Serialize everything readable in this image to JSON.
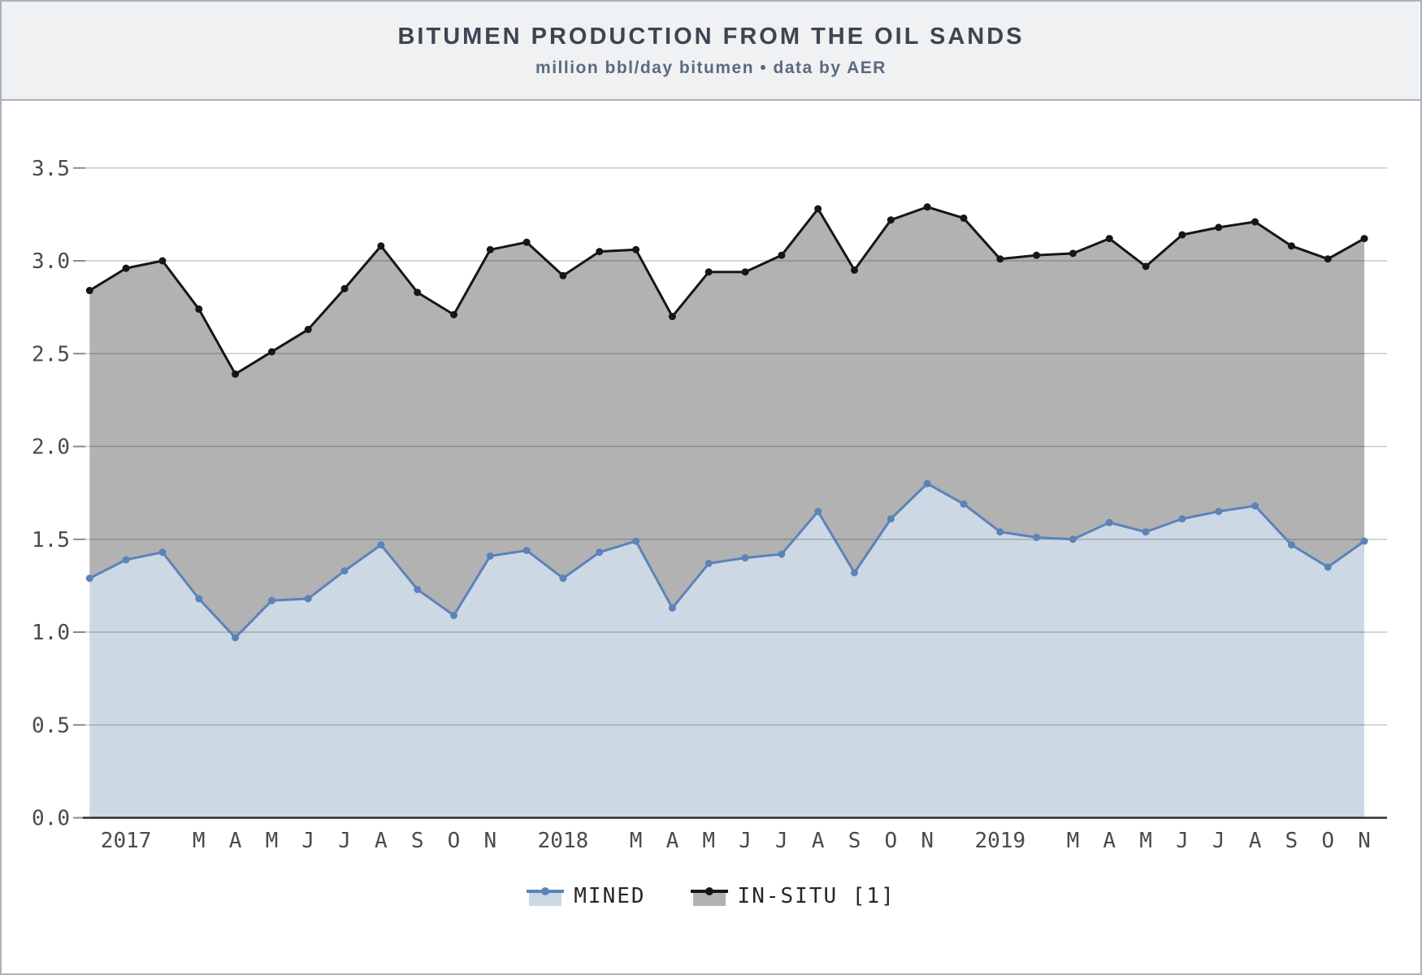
{
  "header": {
    "title": "BITUMEN PRODUCTION FROM THE OIL SANDS",
    "subtitle": "million bbl/day bitumen • data by AER"
  },
  "colors": {
    "background": "#ffffff",
    "header_bg": "#f0f1f2",
    "frame_border": "#a9b2bb",
    "grid": "rgba(0,0,0,0.21)",
    "axis_line": "#2e2e2e",
    "tick_mark": "#8a8a8a",
    "tick_text": "#4a4a4a",
    "title_text": "#3c4652",
    "subtitle_text": "#5a6a7e",
    "mined_line": "#5b83b8",
    "mined_fill": "#cdd8e5",
    "insitu_line": "#161616",
    "insitu_fill": "#b2b2b2"
  },
  "legend": {
    "items": [
      {
        "label": "MINED",
        "line": "#5b83b8",
        "fill": "#cdd8e5"
      },
      {
        "label": "IN-SITU [1]",
        "line": "#161616",
        "fill": "#b2b2b2"
      }
    ]
  },
  "chart_data": {
    "type": "area",
    "stacked": true,
    "title": "BITUMEN PRODUCTION FROM THE OIL SANDS",
    "subtitle": "million bbl/day bitumen • data by AER",
    "ylabel": "million bbl/day bitumen",
    "ylim": [
      0,
      3.5
    ],
    "y_tick_labels": [
      "0.0",
      "0.5",
      "1.0",
      "1.5",
      "2.0",
      "2.5",
      "3.0",
      "3.5"
    ],
    "grid": true,
    "legend_position": "bottom",
    "x_labels": [
      "",
      "2017",
      "",
      "M",
      "A",
      "M",
      "J",
      "J",
      "A",
      "S",
      "O",
      "N",
      "",
      "2018",
      "",
      "M",
      "A",
      "M",
      "J",
      "J",
      "A",
      "S",
      "O",
      "N",
      "",
      "2019",
      "",
      "M",
      "A",
      "M",
      "J",
      "J",
      "A",
      "S",
      "O",
      "N"
    ],
    "series": [
      {
        "name": "MINED",
        "values": [
          1.29,
          1.39,
          1.43,
          1.18,
          0.97,
          1.17,
          1.18,
          1.33,
          1.47,
          1.23,
          1.09,
          1.41,
          1.44,
          1.29,
          1.43,
          1.49,
          1.13,
          1.37,
          1.4,
          1.42,
          1.65,
          1.32,
          1.61,
          1.8,
          1.69,
          1.54,
          1.51,
          1.5,
          1.59,
          1.54,
          1.61,
          1.65,
          1.68,
          1.47,
          1.35,
          1.49
        ]
      },
      {
        "name": "IN-SITU [1]",
        "values": [
          1.55,
          1.57,
          1.57,
          1.56,
          1.42,
          1.34,
          1.45,
          1.52,
          1.61,
          1.6,
          1.62,
          1.65,
          1.66,
          1.63,
          1.62,
          1.57,
          1.57,
          1.57,
          1.54,
          1.61,
          1.63,
          1.63,
          1.61,
          1.49,
          1.54,
          1.47,
          1.52,
          1.54,
          1.53,
          1.43,
          1.53,
          1.53,
          1.53,
          1.61,
          1.66,
          1.63
        ],
        "stack_top_values": [
          2.84,
          2.96,
          3.0,
          2.74,
          2.39,
          2.51,
          2.63,
          2.85,
          3.08,
          2.83,
          2.71,
          3.06,
          3.1,
          2.92,
          3.05,
          3.06,
          2.7,
          2.94,
          2.94,
          3.03,
          3.28,
          2.95,
          3.22,
          3.29,
          3.23,
          3.01,
          3.03,
          3.04,
          3.12,
          2.97,
          3.14,
          3.18,
          3.21,
          3.08,
          3.01,
          3.12
        ]
      }
    ]
  }
}
